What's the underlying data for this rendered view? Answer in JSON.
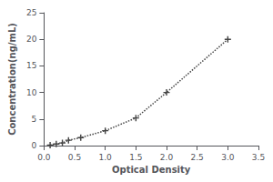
{
  "chart_data": {
    "type": "line",
    "x": [
      0.1,
      0.2,
      0.3,
      0.4,
      0.6,
      1.0,
      1.5,
      2.0,
      3.0
    ],
    "values": [
      0.1,
      0.3,
      0.5,
      1.0,
      1.5,
      2.8,
      5.2,
      10.0,
      20.0
    ],
    "xlabel": "Optical Density",
    "ylabel": "Concentration(ng/mL)",
    "xlim": [
      0,
      3.5
    ],
    "ylim": [
      0,
      25
    ],
    "xticks": [
      {
        "value": 0,
        "label": "0.0"
      },
      0.5,
      {
        "value": 1.0,
        "label": "1.0"
      },
      1.5,
      {
        "value": 2.0,
        "label": "2.0"
      },
      2.5,
      {
        "value": 3.0,
        "label": "3.0"
      },
      3.5
    ],
    "yticks": [
      0,
      5,
      10,
      15,
      20,
      25
    ],
    "color": "#444444",
    "marker": "+",
    "line_style": "dotted",
    "grid": false
  }
}
